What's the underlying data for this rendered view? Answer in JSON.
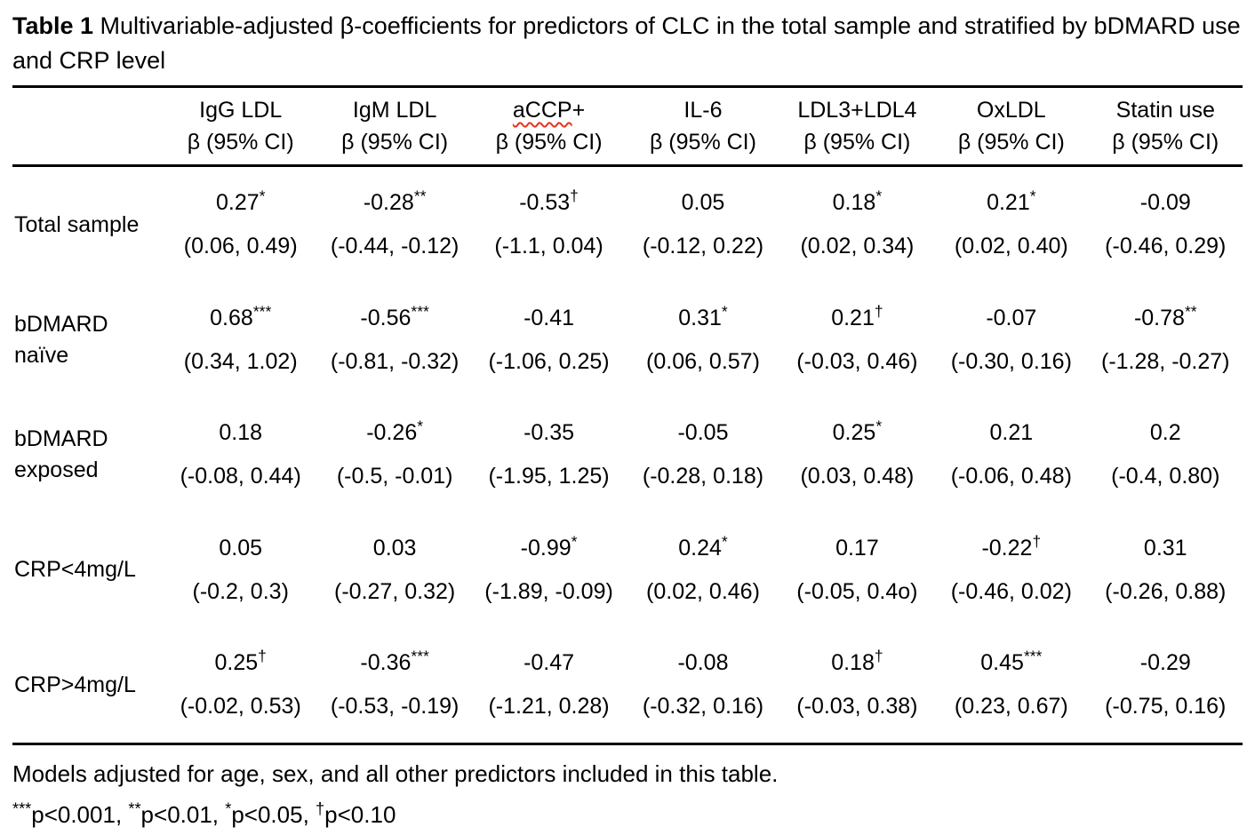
{
  "colors": {
    "background": "#ffffff",
    "text": "#000000",
    "table_rule": "#000000",
    "spellcheck_underline": "#e8321c"
  },
  "title": {
    "label": "Table 1",
    "text": " Multivariable-adjusted β-coefficients for predictors of CLC in the total sample and stratified by bDMARD use and CRP level"
  },
  "table": {
    "columns": [
      {
        "name": "IgG LDL",
        "sub": "β (95% CI)"
      },
      {
        "name": "IgM LDL",
        "sub": "β (95% CI)"
      },
      {
        "name_wavy": "aCCP",
        "name_rest": "+",
        "sub": "β (95% CI)"
      },
      {
        "name": "IL-6",
        "sub": "β (95% CI)"
      },
      {
        "name": "LDL3+LDL4",
        "sub": "β (95% CI)"
      },
      {
        "name": "OxLDL",
        "sub": "β (95% CI)"
      },
      {
        "name": "Statin use",
        "sub": "β (95% CI)"
      }
    ],
    "rows": [
      {
        "label": "Total sample",
        "cells": [
          {
            "beta": "0.27",
            "sig": "*",
            "ci": "(0.06, 0.49)"
          },
          {
            "beta": "-0.28",
            "sig": "**",
            "ci": "(-0.44, -0.12)"
          },
          {
            "beta": "-0.53",
            "sig": "†",
            "ci": "(-1.1, 0.04)"
          },
          {
            "beta": "0.05",
            "sig": "",
            "ci": "(-0.12, 0.22)"
          },
          {
            "beta": "0.18",
            "sig": "*",
            "ci": "(0.02, 0.34)"
          },
          {
            "beta": "0.21",
            "sig": "*",
            "ci": "(0.02, 0.40)"
          },
          {
            "beta": "-0.09",
            "sig": "",
            "ci": "(-0.46, 0.29)"
          }
        ]
      },
      {
        "label": "bDMARD naïve",
        "cells": [
          {
            "beta": "0.68",
            "sig": "***",
            "ci": "(0.34, 1.02)"
          },
          {
            "beta": "-0.56",
            "sig": "***",
            "ci": "(-0.81, -0.32)"
          },
          {
            "beta": "-0.41",
            "sig": "",
            "ci": "(-1.06, 0.25)"
          },
          {
            "beta": "0.31",
            "sig": "*",
            "ci": "(0.06, 0.57)"
          },
          {
            "beta": "0.21",
            "sig": "†",
            "ci": "(-0.03, 0.46)"
          },
          {
            "beta": "-0.07",
            "sig": "",
            "ci": "(-0.30, 0.16)"
          },
          {
            "beta": "-0.78",
            "sig": "**",
            "ci": "(-1.28, -0.27)"
          }
        ]
      },
      {
        "label": "bDMARD exposed",
        "cells": [
          {
            "beta": "0.18",
            "sig": "",
            "ci": "(-0.08, 0.44)"
          },
          {
            "beta": "-0.26",
            "sig": "*",
            "ci": "(-0.5, -0.01)"
          },
          {
            "beta": "-0.35",
            "sig": "",
            "ci": "(-1.95, 1.25)"
          },
          {
            "beta": "-0.05",
            "sig": "",
            "ci": "(-0.28, 0.18)"
          },
          {
            "beta": "0.25",
            "sig": "*",
            "ci": "(0.03, 0.48)"
          },
          {
            "beta": "0.21",
            "sig": "",
            "ci": "(-0.06, 0.48)"
          },
          {
            "beta": "0.2",
            "sig": "",
            "ci": "(-0.4, 0.80)"
          }
        ]
      },
      {
        "label": "CRP<4mg/L",
        "cells": [
          {
            "beta": "0.05",
            "sig": "",
            "ci": "(-0.2, 0.3)"
          },
          {
            "beta": "0.03",
            "sig": "",
            "ci": "(-0.27, 0.32)"
          },
          {
            "beta": "-0.99",
            "sig": "*",
            "ci": "(-1.89, -0.09)"
          },
          {
            "beta": "0.24",
            "sig": "*",
            "ci": "(0.02, 0.46)"
          },
          {
            "beta": "0.17",
            "sig": "",
            "ci": "(-0.05, 0.4o)"
          },
          {
            "beta": "-0.22",
            "sig": "†",
            "ci": "(-0.46, 0.02)"
          },
          {
            "beta": "0.31",
            "sig": "",
            "ci": "(-0.26, 0.88)"
          }
        ]
      },
      {
        "label": "CRP>4mg/L",
        "cells": [
          {
            "beta": "0.25",
            "sig": "†",
            "ci": "(-0.02, 0.53)"
          },
          {
            "beta": "-0.36",
            "sig": "***",
            "ci": "(-0.53, -0.19)"
          },
          {
            "beta": "-0.47",
            "sig": "",
            "ci": "(-1.21, 0.28)"
          },
          {
            "beta": "-0.08",
            "sig": "",
            "ci": "(-0.32, 0.16)"
          },
          {
            "beta": "0.18",
            "sig": "†",
            "ci": "(-0.03, 0.38)"
          },
          {
            "beta": "0.45",
            "sig": "***",
            "ci": "(0.23, 0.67)"
          },
          {
            "beta": "-0.29",
            "sig": "",
            "ci": "(-0.75, 0.16)"
          }
        ]
      }
    ]
  },
  "footnotes": {
    "adjustment": "Models adjusted for age, sex, and all other predictors included in this table.",
    "significance": [
      {
        "marker": "***",
        "text": "p<0.001"
      },
      {
        "marker": "**",
        "text": "p<0.01"
      },
      {
        "marker": "*",
        "text": "p<0.05"
      },
      {
        "marker": "†",
        "text": "p<0.10"
      }
    ],
    "separator": ", "
  }
}
